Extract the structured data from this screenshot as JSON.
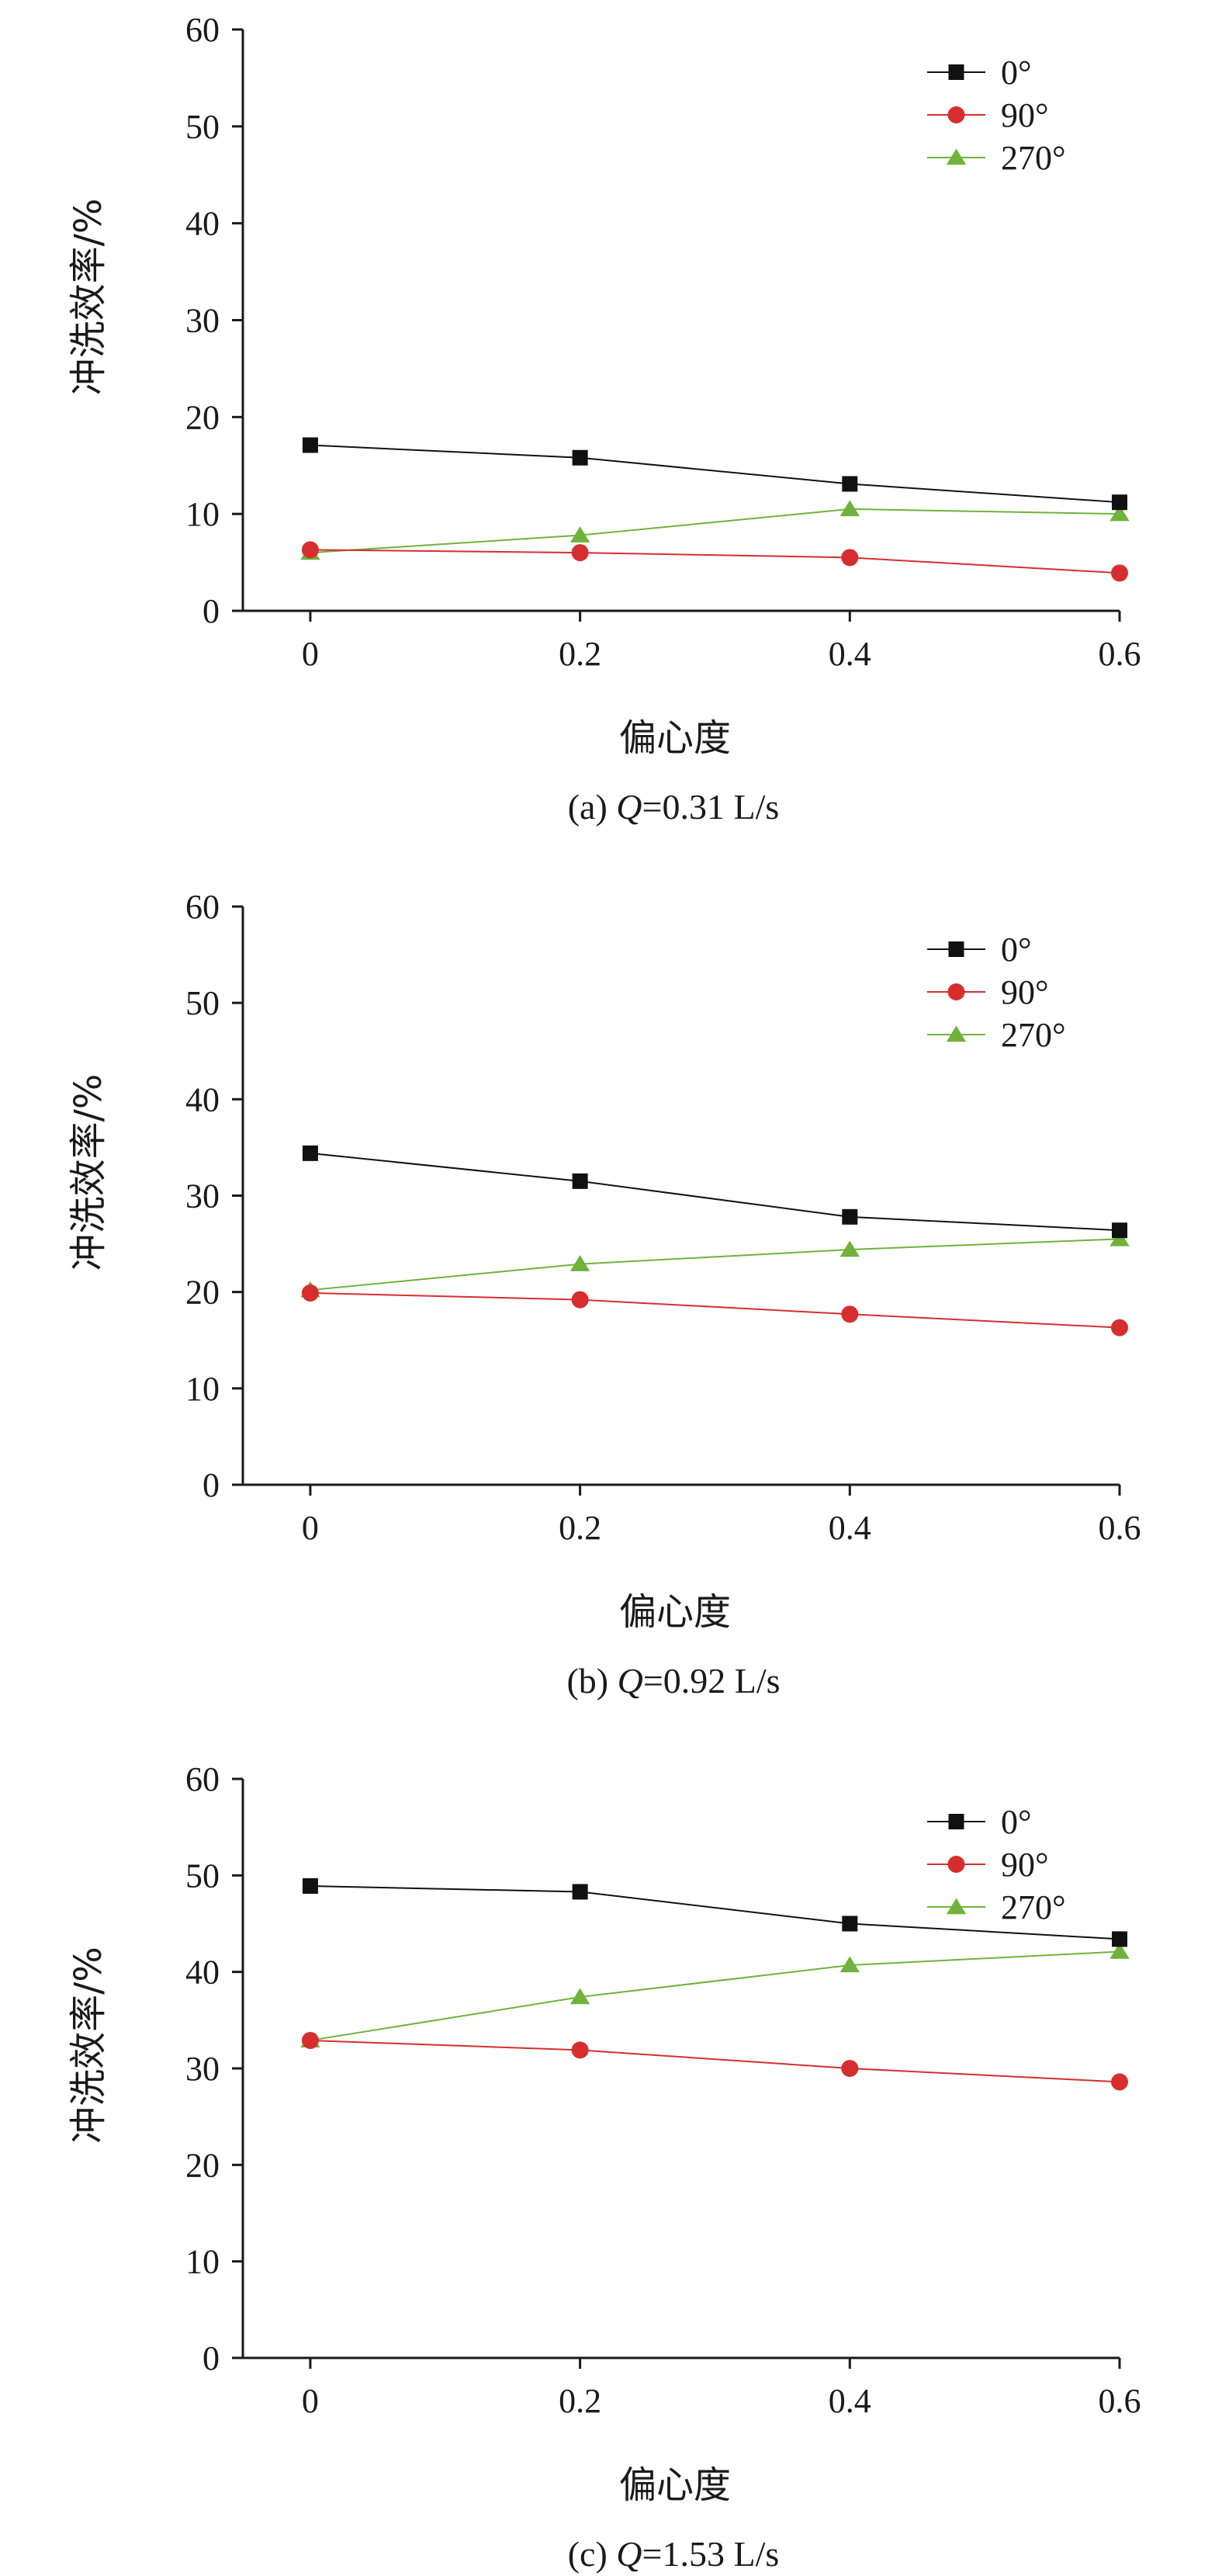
{
  "chart_data": [
    {
      "type": "line",
      "caption": {
        "prefix": "(a) ",
        "var": "Q",
        "rest": "=0.31 L/s"
      },
      "xlabel": "偏心度",
      "ylabel": "冲洗效率/%",
      "x": [
        0,
        0.2,
        0.4,
        0.6
      ],
      "x_ticks": [
        "0",
        "0.2",
        "0.4",
        "0.6"
      ],
      "y_ticks": [
        "0",
        "10",
        "20",
        "30",
        "40",
        "50",
        "60"
      ],
      "xlim": [
        -0.05,
        0.6
      ],
      "ylim": [
        0,
        60
      ],
      "grid": false,
      "legend_position": "top-right",
      "series": [
        {
          "name": "0°",
          "marker": "square",
          "color": "#111111",
          "values": [
            17.1,
            15.8,
            13.1,
            11.2
          ]
        },
        {
          "name": "90°",
          "marker": "circle",
          "color": "#d62e2e",
          "values": [
            6.3,
            6.0,
            5.5,
            3.9
          ]
        },
        {
          "name": "270°",
          "marker": "triangle",
          "color": "#6fb33a",
          "values": [
            6.0,
            7.8,
            10.5,
            10.0
          ]
        }
      ]
    },
    {
      "type": "line",
      "caption": {
        "prefix": "(b) ",
        "var": "Q",
        "rest": "=0.92 L/s"
      },
      "xlabel": "偏心度",
      "ylabel": "冲洗效率/%",
      "x": [
        0,
        0.2,
        0.4,
        0.6
      ],
      "x_ticks": [
        "0",
        "0.2",
        "0.4",
        "0.6"
      ],
      "y_ticks": [
        "0",
        "10",
        "20",
        "30",
        "40",
        "50",
        "60"
      ],
      "xlim": [
        -0.05,
        0.6
      ],
      "ylim": [
        0,
        60
      ],
      "grid": false,
      "legend_position": "top-right",
      "series": [
        {
          "name": "0°",
          "marker": "square",
          "color": "#111111",
          "values": [
            34.4,
            31.5,
            27.8,
            26.4
          ]
        },
        {
          "name": "90°",
          "marker": "circle",
          "color": "#d62e2e",
          "values": [
            19.9,
            19.2,
            17.7,
            16.3
          ]
        },
        {
          "name": "270°",
          "marker": "triangle",
          "color": "#6fb33a",
          "values": [
            20.2,
            22.9,
            24.4,
            25.5
          ]
        }
      ]
    },
    {
      "type": "line",
      "caption": {
        "prefix": "(c) ",
        "var": "Q",
        "rest": "=1.53 L/s"
      },
      "xlabel": "偏心度",
      "ylabel": "冲洗效率/%",
      "x": [
        0,
        0.2,
        0.4,
        0.6
      ],
      "x_ticks": [
        "0",
        "0.2",
        "0.4",
        "0.6"
      ],
      "y_ticks": [
        "0",
        "10",
        "20",
        "30",
        "40",
        "50",
        "60"
      ],
      "xlim": [
        -0.05,
        0.6
      ],
      "ylim": [
        0,
        60
      ],
      "grid": false,
      "legend_position": "top-right",
      "series": [
        {
          "name": "0°",
          "marker": "square",
          "color": "#111111",
          "values": [
            48.9,
            48.3,
            45.0,
            43.4
          ]
        },
        {
          "name": "90°",
          "marker": "circle",
          "color": "#d62e2e",
          "values": [
            32.9,
            31.9,
            30.0,
            28.6
          ]
        },
        {
          "name": "270°",
          "marker": "triangle",
          "color": "#6fb33a",
          "values": [
            32.9,
            37.4,
            40.7,
            42.1
          ]
        }
      ]
    }
  ]
}
